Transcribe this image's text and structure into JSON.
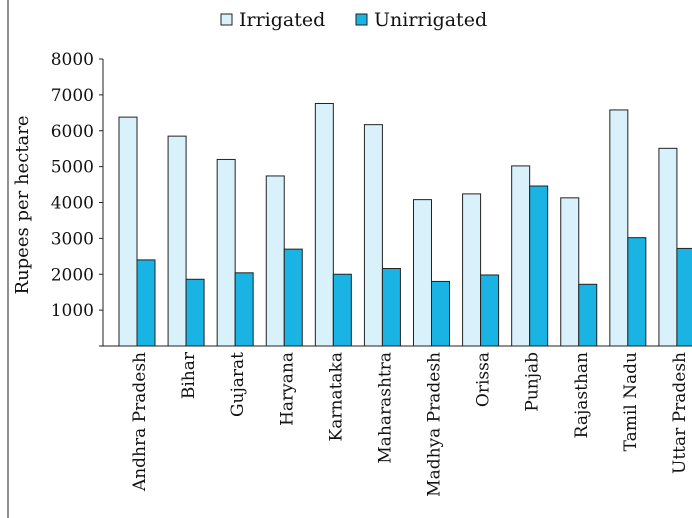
{
  "chart_data": {
    "type": "bar",
    "title": "",
    "xlabel": "",
    "ylabel": "Rupees per hectare",
    "categories": [
      "Andhra Pradesh",
      "Bihar",
      "Gujarat",
      "Haryana",
      "Karnataka",
      "Maharashtra",
      "Madhya Pradesh",
      "Orissa",
      "Punjab",
      "Rajasthan",
      "Tamil Nadu",
      "Uttar Pradesh"
    ],
    "series": [
      {
        "name": "Irrigated",
        "color": "#d9f1fb",
        "values": [
          6380,
          5850,
          5200,
          4740,
          6760,
          6170,
          4080,
          4240,
          5020,
          4130,
          6580,
          5510
        ]
      },
      {
        "name": "Unirrigated",
        "color": "#19b3e4",
        "values": [
          2400,
          1860,
          2040,
          2700,
          2000,
          2160,
          1800,
          1980,
          4460,
          1720,
          3020,
          2720
        ]
      }
    ],
    "ylim": [
      0,
      8000
    ],
    "yticks": [
      1000,
      2000,
      3000,
      4000,
      5000,
      6000,
      7000,
      8000
    ],
    "grid": false,
    "legend_position": "top"
  }
}
